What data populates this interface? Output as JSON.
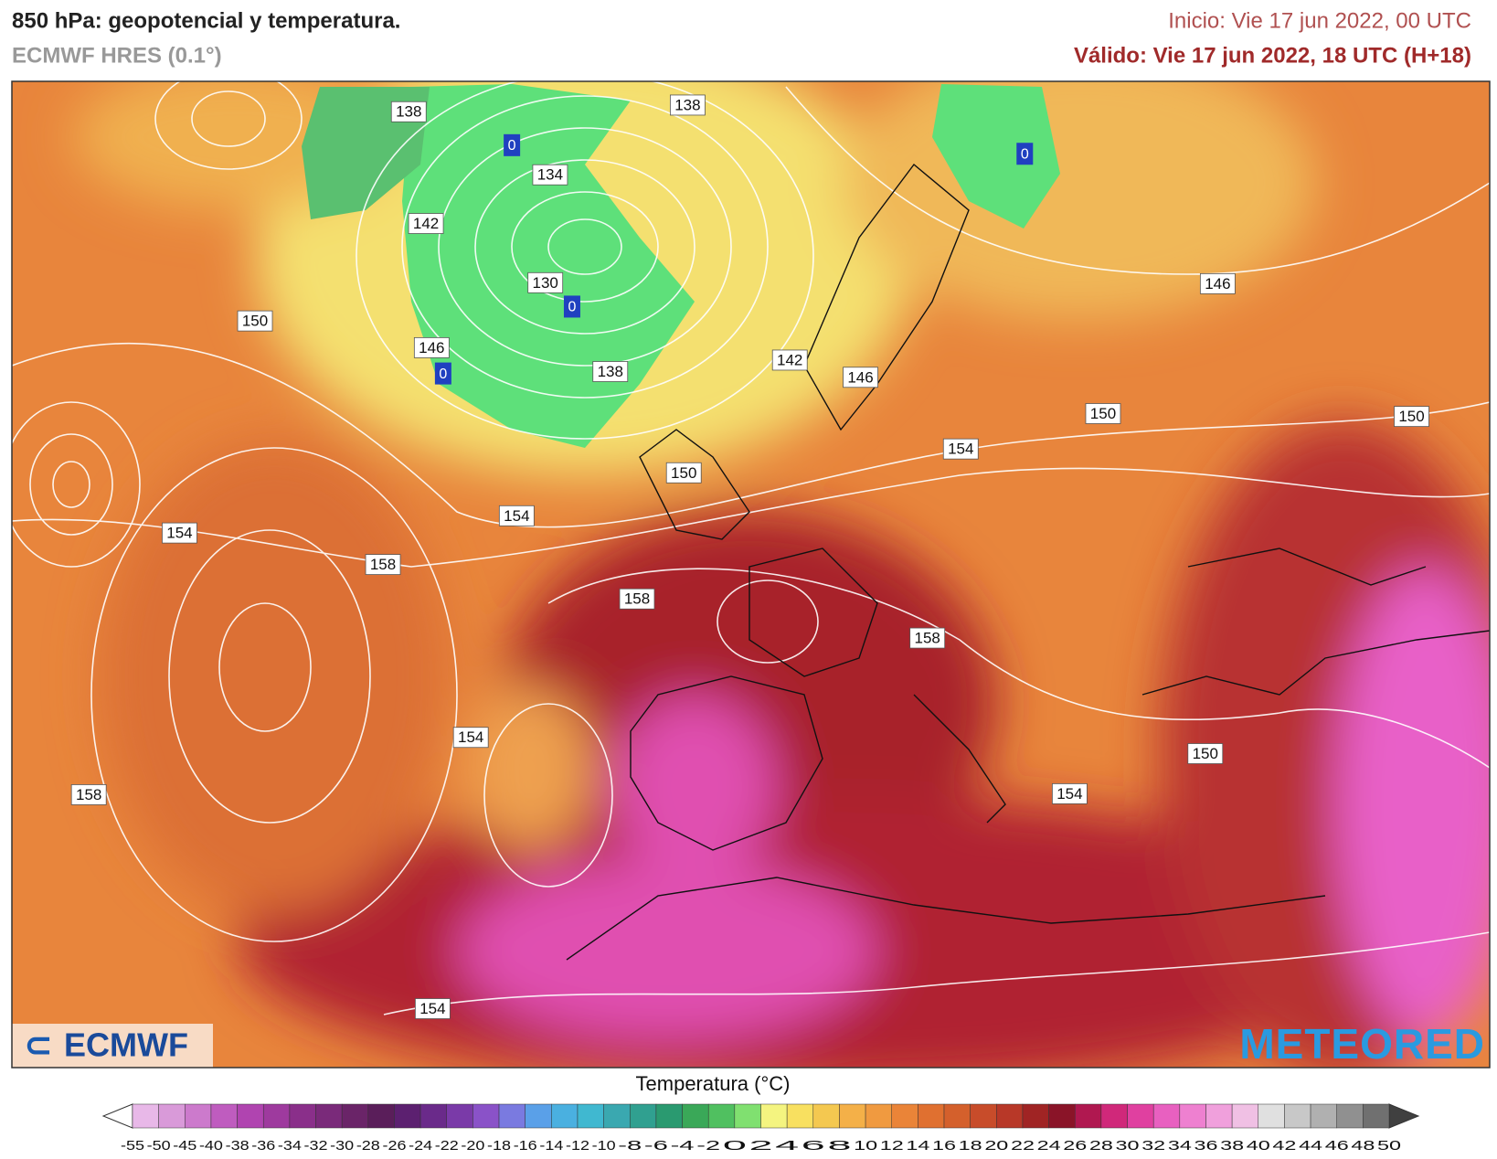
{
  "header": {
    "title": "850 hPa: geopotencial y temperatura.",
    "subtitle": "ECMWF HRES (0.1°)",
    "init": "Inicio: Vie 17 jun 2022, 00 UTC",
    "valid": "Válido: Vie 17 jun 2022, 18 UTC (H+18)"
  },
  "map": {
    "contour_labels": [
      138,
      138,
      134,
      142,
      130,
      150,
      146,
      138,
      142,
      146,
      146,
      150,
      150,
      154,
      150,
      154,
      154,
      158,
      158,
      158,
      154,
      150,
      158,
      154,
      154
    ],
    "isotherm_labels": [
      0,
      0,
      0,
      0
    ]
  },
  "legend": {
    "title": "Temperatura (°C)",
    "ticks": [
      -55,
      -50,
      -45,
      -40,
      -38,
      -36,
      -34,
      -32,
      -30,
      -28,
      -26,
      -24,
      -22,
      -20,
      -18,
      -16,
      -14,
      -12,
      -10,
      -8,
      -6,
      -4,
      -2,
      0,
      2,
      4,
      6,
      8,
      10,
      12,
      14,
      16,
      18,
      20,
      22,
      24,
      26,
      28,
      30,
      32,
      34,
      36,
      38,
      40,
      42,
      44,
      46,
      48,
      50
    ],
    "colors": [
      "#e8b8e8",
      "#d99ad9",
      "#cc7acc",
      "#bf5cbf",
      "#b044b0",
      "#9e3a9e",
      "#8a2f8a",
      "#7a2a7a",
      "#6a2468",
      "#5a1e5a",
      "#5c2070",
      "#6a2a8a",
      "#7a3aa8",
      "#8a52c8",
      "#7a7ae0",
      "#5aa0e8",
      "#4ab0e0",
      "#40b8d0",
      "#3aa8b0",
      "#30a090",
      "#2a9a70",
      "#3aa858",
      "#50c060",
      "#80e070",
      "#f4f480",
      "#f8e060",
      "#f4c850",
      "#f4b048",
      "#f09a40",
      "#ea8438",
      "#e07030",
      "#d4602c",
      "#c84c2a",
      "#b83828",
      "#a02424",
      "#8a1428",
      "#b01850",
      "#d0287a",
      "#e040a0",
      "#e860c0",
      "#ee80d0",
      "#f0a0dc",
      "#f0c0e4",
      "#e0e0e0",
      "#c8c8c8",
      "#b0b0b0",
      "#909090",
      "#707070"
    ]
  },
  "logos": {
    "left": "ECMWF",
    "right": "METEORED"
  }
}
